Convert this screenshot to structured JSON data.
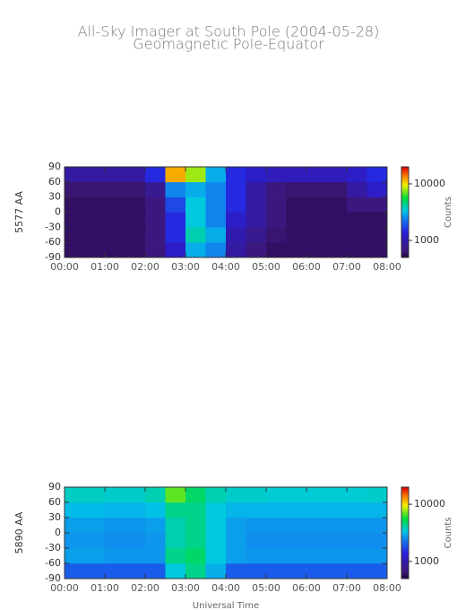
{
  "title": "All-Sky Imager at South Pole (2004-05-28)",
  "subtitle": "Geomagnetic Pole-Equator",
  "chart_data": [
    {
      "type": "heatmap",
      "ylabel": "5577 AA",
      "colorbar_label": "Counts",
      "colormap": "rainbow",
      "log_color": true,
      "xbins": [
        0,
        0.5,
        1,
        1.5,
        2,
        2.5,
        3,
        3.5,
        4,
        4.5,
        5,
        5.5,
        6,
        6.5,
        7,
        7.5,
        8
      ],
      "ybins": [
        -90,
        -60,
        -30,
        0,
        30,
        60,
        90
      ],
      "z": [
        [
          600,
          600,
          600,
          600,
          700,
          1200,
          3000,
          2500,
          900,
          700,
          600,
          600,
          600,
          600,
          600,
          600
        ],
        [
          600,
          600,
          600,
          600,
          700,
          1500,
          4000,
          3000,
          1000,
          800,
          650,
          600,
          600,
          600,
          600,
          600
        ],
        [
          600,
          600,
          600,
          600,
          700,
          1500,
          3500,
          2500,
          1200,
          900,
          700,
          600,
          600,
          600,
          600,
          600
        ],
        [
          600,
          600,
          600,
          600,
          700,
          1800,
          3500,
          2500,
          1500,
          900,
          700,
          600,
          600,
          600,
          700,
          700
        ],
        [
          650,
          650,
          650,
          650,
          800,
          2500,
          3000,
          2500,
          1500,
          900,
          700,
          650,
          650,
          650,
          900,
          1200
        ],
        [
          900,
          900,
          900,
          900,
          1500,
          12000,
          8000,
          3000,
          1500,
          1200,
          1100,
          1100,
          1100,
          1100,
          1200,
          1500
        ]
      ],
      "xlim": [
        0,
        8
      ],
      "xticks": [
        {
          "value": 0,
          "label": "00:00"
        },
        {
          "value": 1,
          "label": "01:00"
        },
        {
          "value": 2,
          "label": "02:00"
        },
        {
          "value": 3,
          "label": "03:00"
        },
        {
          "value": 4,
          "label": "04:00"
        },
        {
          "value": 5,
          "label": "05:00"
        },
        {
          "value": 6,
          "label": "06:00"
        },
        {
          "value": 7,
          "label": "07:00"
        },
        {
          "value": 8,
          "label": "08:00"
        }
      ],
      "ylim": [
        -90,
        90
      ],
      "yticks": [
        -90,
        -60,
        -30,
        0,
        30,
        60,
        90
      ],
      "zlim": [
        500,
        20000
      ],
      "zticks": [
        1000,
        10000
      ]
    },
    {
      "type": "heatmap",
      "ylabel": "5890 AA",
      "xlabel": "Universal Time",
      "colorbar_label": "Counts",
      "colormap": "rainbow",
      "log_color": true,
      "xbins": [
        0,
        0.5,
        1,
        1.5,
        2,
        2.5,
        3,
        3.5,
        4,
        4.5,
        5,
        5.5,
        6,
        6.5,
        7,
        7.5,
        8
      ],
      "ybins": [
        -90,
        -60,
        -30,
        0,
        30,
        60,
        90
      ],
      "z": [
        [
          2000,
          2000,
          2000,
          2000,
          2000,
          3500,
          4500,
          3000,
          2000,
          2000,
          2000,
          2000,
          2000,
          2000,
          2000,
          2000
        ],
        [
          2800,
          2800,
          2700,
          2700,
          2700,
          4500,
          5000,
          3500,
          2800,
          2700,
          2700,
          2700,
          2700,
          2700,
          2700,
          2700
        ],
        [
          2700,
          2700,
          2600,
          2600,
          2700,
          4000,
          4500,
          3500,
          2800,
          2600,
          2600,
          2600,
          2600,
          2600,
          2600,
          2600
        ],
        [
          2800,
          2800,
          2700,
          2700,
          2800,
          4000,
          4500,
          3500,
          2800,
          2700,
          2700,
          2700,
          2700,
          2700,
          2700,
          2700
        ],
        [
          3200,
          3200,
          3100,
          3100,
          3300,
          4500,
          4500,
          3500,
          3100,
          3100,
          3100,
          3100,
          3100,
          3100,
          3100,
          3100
        ],
        [
          3800,
          3800,
          3700,
          3700,
          4000,
          7000,
          5000,
          4000,
          3700,
          3700,
          3600,
          3600,
          3600,
          3600,
          3600,
          3700
        ]
      ],
      "xlim": [
        0,
        8
      ],
      "xticks": [
        {
          "value": 0,
          "label": "00:00"
        },
        {
          "value": 1,
          "label": "01:00"
        },
        {
          "value": 2,
          "label": "02:00"
        },
        {
          "value": 3,
          "label": "03:00"
        },
        {
          "value": 4,
          "label": "04:00"
        },
        {
          "value": 5,
          "label": "05:00"
        },
        {
          "value": 6,
          "label": "06:00"
        },
        {
          "value": 7,
          "label": "07:00"
        },
        {
          "value": 8,
          "label": "08:00"
        }
      ],
      "ylim": [
        -90,
        90
      ],
      "yticks": [
        -90,
        -60,
        -30,
        0,
        30,
        60,
        90
      ],
      "zlim": [
        500,
        20000
      ],
      "zticks": [
        1000,
        10000
      ]
    }
  ]
}
